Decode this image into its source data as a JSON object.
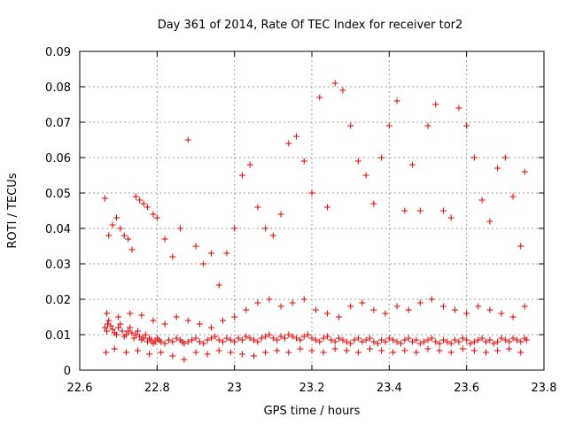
{
  "chart_data": {
    "type": "scatter",
    "title": "Day 361 of 2014, Rate Of TEC Index for receiver tor2",
    "xlabel": "GPS time / hours",
    "ylabel": "ROTI / TECUs",
    "xlim": [
      22.6,
      23.8
    ],
    "ylim": [
      0,
      0.09
    ],
    "x_ticks": [
      "22.6",
      "22.8",
      "23",
      "23.2",
      "23.4",
      "23.6",
      "23.8"
    ],
    "y_ticks": [
      "0",
      "0.01",
      "0.02",
      "0.03",
      "0.04",
      "0.05",
      "0.06",
      "0.07",
      "0.08",
      "0.09"
    ],
    "grid": true,
    "marker": "+",
    "marker_color": "#e00000",
    "series": [
      {
        "name": "ROTI",
        "x": [
          22.665,
          22.67,
          22.672,
          22.675,
          22.68,
          22.685,
          22.69,
          22.695,
          22.7,
          22.705,
          22.71,
          22.715,
          22.72,
          22.725,
          22.73,
          22.735,
          22.74,
          22.745,
          22.75,
          22.755,
          22.76,
          22.765,
          22.77,
          22.775,
          22.78,
          22.785,
          22.79,
          22.795,
          22.8,
          22.805,
          22.81,
          22.82,
          22.83,
          22.84,
          22.85,
          22.86,
          22.865,
          22.87,
          22.88,
          22.89,
          22.9,
          22.91,
          22.92,
          22.93,
          22.94,
          22.95,
          22.96,
          22.97,
          22.98,
          22.99,
          23.0,
          23.01,
          23.02,
          23.03,
          23.04,
          23.05,
          23.06,
          23.07,
          23.08,
          23.09,
          23.1,
          23.11,
          23.12,
          23.13,
          23.14,
          23.15,
          23.16,
          23.17,
          23.18,
          23.19,
          23.2,
          23.21,
          23.22,
          23.23,
          23.24,
          23.25,
          23.26,
          23.27,
          23.28,
          23.29,
          23.3,
          23.31,
          23.32,
          23.33,
          23.34,
          23.35,
          23.36,
          23.37,
          23.38,
          23.39,
          23.4,
          23.41,
          23.42,
          23.43,
          23.44,
          23.45,
          23.46,
          23.47,
          23.48,
          23.49,
          23.5,
          23.51,
          23.52,
          23.53,
          23.54,
          23.55,
          23.56,
          23.57,
          23.58,
          23.59,
          23.6,
          23.61,
          23.62,
          23.63,
          23.64,
          23.65,
          23.66,
          23.67,
          23.68,
          23.69,
          23.7,
          23.71,
          23.72,
          23.73,
          23.74,
          23.75,
          23.755,
          22.668,
          22.69,
          22.72,
          22.75,
          22.78,
          22.81,
          22.84,
          22.87,
          22.9,
          22.93,
          22.96,
          22.99,
          23.02,
          23.05,
          23.08,
          23.11,
          23.14,
          23.17,
          23.2,
          23.23,
          23.26,
          23.29,
          23.32,
          23.35,
          23.38,
          23.41,
          23.44,
          23.47,
          23.5,
          23.53,
          23.56,
          23.59,
          23.62,
          23.65,
          23.68,
          23.71,
          23.74,
          22.67,
          22.7,
          22.73,
          22.76,
          22.79,
          22.82,
          22.85,
          22.88,
          22.91,
          22.94,
          22.97,
          23.0,
          23.03,
          23.06,
          23.09,
          23.12,
          23.15,
          23.18,
          23.21,
          23.24,
          23.27,
          23.3,
          23.33,
          23.36,
          23.39,
          23.42,
          23.45,
          23.48,
          23.51,
          23.54,
          23.57,
          23.6,
          23.63,
          23.66,
          23.69,
          23.72,
          23.75,
          22.665,
          22.675,
          22.685,
          22.695,
          22.705,
          22.715,
          22.725,
          22.735,
          22.745,
          22.755,
          22.765,
          22.775,
          22.79,
          22.8,
          22.82,
          22.84,
          22.86,
          22.88,
          22.9,
          22.92,
          22.94,
          22.96,
          22.98,
          23.0,
          23.02,
          23.04,
          23.06,
          23.08,
          23.1,
          23.12,
          23.14,
          23.16,
          23.18,
          23.2,
          23.22,
          23.24,
          23.26,
          23.28,
          23.3,
          23.32,
          23.34,
          23.36,
          23.38,
          23.4,
          23.42,
          23.44,
          23.46,
          23.48,
          23.5,
          23.52,
          23.54,
          23.56,
          23.58,
          23.6,
          23.62,
          23.64,
          23.66,
          23.68,
          23.7,
          23.72,
          23.74,
          23.75
        ],
        "y": [
          0.012,
          0.011,
          0.013,
          0.014,
          0.0125,
          0.0115,
          0.0105,
          0.01,
          0.012,
          0.013,
          0.011,
          0.0095,
          0.01,
          0.011,
          0.012,
          0.0105,
          0.009,
          0.01,
          0.011,
          0.0095,
          0.0085,
          0.009,
          0.01,
          0.008,
          0.009,
          0.0085,
          0.0075,
          0.008,
          0.009,
          0.0085,
          0.008,
          0.0075,
          0.0085,
          0.008,
          0.009,
          0.0085,
          0.008,
          0.0075,
          0.008,
          0.0085,
          0.009,
          0.008,
          0.0075,
          0.0085,
          0.009,
          0.0095,
          0.0085,
          0.008,
          0.009,
          0.0085,
          0.008,
          0.009,
          0.0085,
          0.0095,
          0.009,
          0.0085,
          0.008,
          0.009,
          0.0095,
          0.01,
          0.009,
          0.0085,
          0.0095,
          0.009,
          0.01,
          0.0095,
          0.009,
          0.0085,
          0.0095,
          0.01,
          0.009,
          0.0085,
          0.008,
          0.009,
          0.0095,
          0.0085,
          0.008,
          0.009,
          0.0085,
          0.008,
          0.0075,
          0.0085,
          0.009,
          0.008,
          0.0085,
          0.009,
          0.008,
          0.0075,
          0.0085,
          0.008,
          0.009,
          0.0085,
          0.008,
          0.0075,
          0.0085,
          0.009,
          0.008,
          0.0085,
          0.0075,
          0.008,
          0.0085,
          0.009,
          0.008,
          0.0075,
          0.0085,
          0.008,
          0.0075,
          0.0085,
          0.008,
          0.009,
          0.0085,
          0.0075,
          0.008,
          0.0085,
          0.009,
          0.008,
          0.0085,
          0.0075,
          0.008,
          0.009,
          0.0085,
          0.008,
          0.009,
          0.0085,
          0.008,
          0.009,
          0.0085,
          0.005,
          0.006,
          0.005,
          0.0055,
          0.0045,
          0.005,
          0.004,
          0.003,
          0.005,
          0.0045,
          0.0055,
          0.005,
          0.0045,
          0.004,
          0.005,
          0.0055,
          0.005,
          0.006,
          0.0055,
          0.005,
          0.006,
          0.0055,
          0.005,
          0.006,
          0.0055,
          0.005,
          0.0055,
          0.005,
          0.006,
          0.0055,
          0.005,
          0.006,
          0.0055,
          0.005,
          0.0055,
          0.006,
          0.005,
          0.016,
          0.015,
          0.016,
          0.0155,
          0.014,
          0.013,
          0.015,
          0.014,
          0.013,
          0.012,
          0.014,
          0.015,
          0.017,
          0.019,
          0.02,
          0.018,
          0.019,
          0.02,
          0.017,
          0.016,
          0.015,
          0.018,
          0.019,
          0.017,
          0.016,
          0.018,
          0.017,
          0.019,
          0.02,
          0.018,
          0.017,
          0.016,
          0.018,
          0.017,
          0.016,
          0.015,
          0.018,
          0.0485,
          0.038,
          0.041,
          0.043,
          0.04,
          0.038,
          0.037,
          0.034,
          0.049,
          0.048,
          0.047,
          0.046,
          0.044,
          0.043,
          0.037,
          0.032,
          0.04,
          0.065,
          0.035,
          0.03,
          0.033,
          0.024,
          0.033,
          0.04,
          0.055,
          0.058,
          0.046,
          0.04,
          0.038,
          0.044,
          0.064,
          0.066,
          0.059,
          0.05,
          0.077,
          0.046,
          0.081,
          0.079,
          0.069,
          0.059,
          0.055,
          0.047,
          0.06,
          0.069,
          0.076,
          0.045,
          0.058,
          0.045,
          0.069,
          0.075,
          0.045,
          0.043,
          0.074,
          0.069,
          0.06,
          0.048,
          0.042,
          0.057,
          0.06,
          0.049,
          0.035,
          0.056
        ]
      }
    ]
  }
}
